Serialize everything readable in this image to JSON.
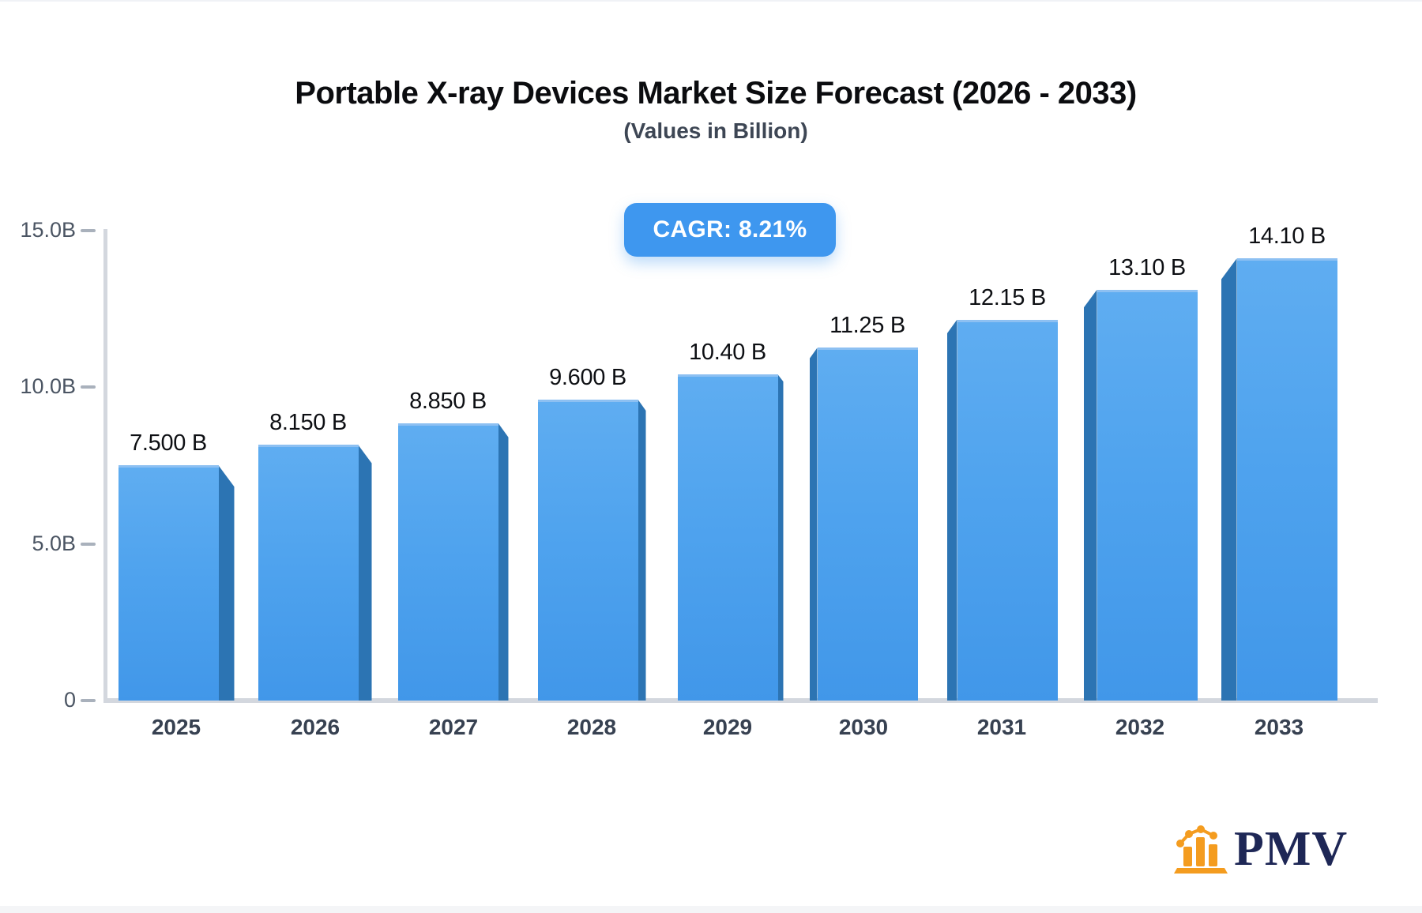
{
  "header": {
    "title": "Portable X-ray Devices Market Size Forecast (2026 - 2033)",
    "subtitle": "(Values in Billion)"
  },
  "badge": {
    "label": "CAGR: 8.21%"
  },
  "chart_data": {
    "type": "bar",
    "title": "Portable X-ray Devices Market Size Forecast (2026 - 2033)",
    "subtitle": "(Values in Billion)",
    "categories": [
      "2025",
      "2026",
      "2027",
      "2028",
      "2029",
      "2030",
      "2031",
      "2032",
      "2033"
    ],
    "values": [
      7.5,
      8.15,
      8.85,
      9.6,
      10.4,
      11.25,
      12.15,
      13.1,
      14.1
    ],
    "value_labels": [
      "7.500 B",
      "8.150 B",
      "8.850 B",
      "9.600 B",
      "10.40 B",
      "11.25 B",
      "12.15 B",
      "13.10 B",
      "14.10 B"
    ],
    "xlabel": "",
    "ylabel": "",
    "ylim": [
      0,
      15
    ],
    "yticks": [
      {
        "label": "15.0B",
        "value": 15
      },
      {
        "label": "10.0B",
        "value": 10
      },
      {
        "label": "5.0B",
        "value": 5
      },
      {
        "label": "0",
        "value": 0
      }
    ],
    "grid": false,
    "legend": false,
    "colors": {
      "bar_face_top": "#5fadf1",
      "bar_face_bottom": "#4197e9",
      "bar_side": "#2c74b3",
      "axis_line": "#d3d7de",
      "tick_text": "#4b5563",
      "x_label_text": "#374151",
      "value_label_text": "#0d0f13",
      "badge_background": "#3e97ef",
      "badge_text": "#ffffff"
    }
  },
  "watermark": {
    "text": "PMV",
    "icon": "bar-chart-logo-icon",
    "icon_color": "#f49c1f",
    "text_color": "#1e2756"
  }
}
